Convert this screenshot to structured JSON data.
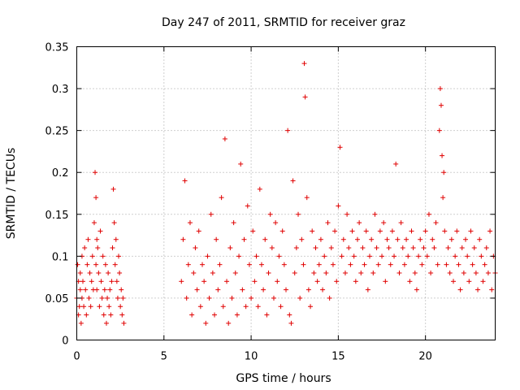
{
  "chart_data": {
    "type": "scatter",
    "title": "Day 247 of 2011, SRMTID for receiver graz",
    "xlabel": "GPS time / hours",
    "ylabel": "SRMTID / TECUs",
    "xlim": [
      0,
      24
    ],
    "ylim": [
      0,
      0.35
    ],
    "x_ticks": [
      0,
      5,
      10,
      15,
      20
    ],
    "x_tick_labels": [
      "0",
      "5",
      "10",
      "15",
      "20"
    ],
    "y_ticks": [
      0,
      0.05,
      0.1,
      0.15,
      0.2,
      0.25,
      0.3,
      0.35
    ],
    "y_tick_labels": [
      "0",
      "0.05",
      "0.1",
      "0.15",
      "0.2",
      "0.25",
      "0.3",
      "0.35"
    ],
    "grid": true,
    "marker": "+",
    "marker_color": "#e00000",
    "series": [
      {
        "name": "SRMTID",
        "x": [
          0.0,
          0.05,
          0.1,
          0.1,
          0.15,
          0.2,
          0.2,
          0.25,
          0.3,
          0.3,
          0.35,
          0.4,
          0.45,
          0.5,
          0.55,
          0.6,
          0.65,
          0.7,
          0.75,
          0.8,
          0.85,
          0.9,
          0.95,
          1.0,
          1.05,
          1.1,
          1.1,
          1.15,
          1.15,
          1.2,
          1.25,
          1.3,
          1.35,
          1.4,
          1.45,
          1.5,
          1.55,
          1.6,
          1.65,
          1.7,
          1.75,
          1.8,
          1.85,
          1.9,
          1.95,
          2.0,
          2.05,
          2.1,
          2.15,
          2.2,
          2.25,
          2.3,
          2.35,
          2.4,
          2.45,
          2.5,
          2.55,
          2.6,
          2.65,
          2.7,
          6.0,
          6.1,
          6.2,
          6.3,
          6.4,
          6.5,
          6.6,
          6.7,
          6.8,
          6.9,
          7.0,
          7.1,
          7.2,
          7.3,
          7.4,
          7.5,
          7.6,
          7.7,
          7.8,
          7.9,
          8.0,
          8.1,
          8.2,
          8.3,
          8.4,
          8.5,
          8.6,
          8.7,
          8.8,
          8.9,
          9.0,
          9.1,
          9.2,
          9.3,
          9.4,
          9.5,
          9.6,
          9.7,
          9.8,
          9.9,
          10.0,
          10.1,
          10.2,
          10.3,
          10.4,
          10.5,
          10.6,
          10.7,
          10.8,
          10.9,
          11.0,
          11.1,
          11.2,
          11.3,
          11.4,
          11.5,
          11.6,
          11.7,
          11.8,
          11.9,
          12.0,
          12.1,
          12.2,
          12.3,
          12.4,
          12.5,
          12.6,
          12.7,
          12.8,
          12.9,
          13.0,
          13.05,
          13.1,
          13.2,
          13.3,
          13.4,
          13.5,
          13.6,
          13.7,
          13.8,
          13.9,
          14.0,
          14.1,
          14.2,
          14.3,
          14.4,
          14.5,
          14.6,
          14.7,
          14.8,
          14.9,
          15.0,
          15.1,
          15.2,
          15.3,
          15.4,
          15.5,
          15.6,
          15.7,
          15.8,
          15.9,
          16.0,
          16.1,
          16.2,
          16.3,
          16.4,
          16.5,
          16.6,
          16.7,
          16.8,
          16.9,
          17.0,
          17.1,
          17.2,
          17.3,
          17.4,
          17.5,
          17.6,
          17.7,
          17.8,
          17.9,
          18.0,
          18.1,
          18.2,
          18.3,
          18.4,
          18.5,
          18.6,
          18.7,
          18.8,
          18.9,
          19.0,
          19.1,
          19.2,
          19.3,
          19.4,
          19.5,
          19.6,
          19.7,
          19.8,
          19.9,
          20.0,
          20.1,
          20.2,
          20.3,
          20.4,
          20.5,
          20.6,
          20.7,
          20.8,
          20.85,
          20.9,
          20.95,
          21.0,
          21.05,
          21.1,
          21.2,
          21.3,
          21.4,
          21.5,
          21.6,
          21.7,
          21.8,
          21.9,
          22.0,
          22.1,
          22.2,
          22.3,
          22.4,
          22.5,
          22.6,
          22.7,
          22.8,
          22.9,
          23.0,
          23.1,
          23.2,
          23.3,
          23.4,
          23.5,
          23.6,
          23.7,
          23.8,
          23.9,
          24.0
        ],
        "y": [
          0.05,
          0.09,
          0.03,
          0.07,
          0.04,
          0.08,
          0.06,
          0.02,
          0.1,
          0.05,
          0.07,
          0.04,
          0.11,
          0.06,
          0.03,
          0.09,
          0.12,
          0.05,
          0.08,
          0.04,
          0.07,
          0.1,
          0.06,
          0.14,
          0.2,
          0.17,
          0.09,
          0.12,
          0.06,
          0.11,
          0.08,
          0.04,
          0.13,
          0.07,
          0.05,
          0.1,
          0.03,
          0.06,
          0.09,
          0.02,
          0.05,
          0.08,
          0.04,
          0.06,
          0.03,
          0.07,
          0.11,
          0.18,
          0.14,
          0.09,
          0.12,
          0.07,
          0.05,
          0.1,
          0.08,
          0.04,
          0.06,
          0.03,
          0.05,
          0.02,
          0.07,
          0.12,
          0.19,
          0.05,
          0.09,
          0.14,
          0.03,
          0.08,
          0.11,
          0.06,
          0.13,
          0.04,
          0.09,
          0.07,
          0.02,
          0.1,
          0.05,
          0.15,
          0.08,
          0.03,
          0.12,
          0.06,
          0.09,
          0.17,
          0.04,
          0.24,
          0.07,
          0.02,
          0.11,
          0.05,
          0.14,
          0.08,
          0.03,
          0.1,
          0.21,
          0.06,
          0.12,
          0.04,
          0.16,
          0.09,
          0.05,
          0.13,
          0.07,
          0.1,
          0.04,
          0.18,
          0.09,
          0.06,
          0.12,
          0.03,
          0.08,
          0.15,
          0.11,
          0.05,
          0.14,
          0.07,
          0.1,
          0.04,
          0.13,
          0.09,
          0.06,
          0.25,
          0.03,
          0.02,
          0.19,
          0.08,
          0.11,
          0.15,
          0.05,
          0.12,
          0.09,
          0.33,
          0.29,
          0.17,
          0.06,
          0.04,
          0.13,
          0.08,
          0.11,
          0.07,
          0.09,
          0.12,
          0.06,
          0.1,
          0.08,
          0.14,
          0.05,
          0.11,
          0.09,
          0.13,
          0.07,
          0.16,
          0.23,
          0.1,
          0.12,
          0.08,
          0.15,
          0.11,
          0.09,
          0.13,
          0.1,
          0.07,
          0.12,
          0.14,
          0.08,
          0.11,
          0.09,
          0.13,
          0.06,
          0.1,
          0.12,
          0.08,
          0.15,
          0.11,
          0.09,
          0.13,
          0.1,
          0.14,
          0.07,
          0.12,
          0.11,
          0.09,
          0.13,
          0.1,
          0.21,
          0.12,
          0.08,
          0.14,
          0.11,
          0.09,
          0.12,
          0.1,
          0.07,
          0.13,
          0.11,
          0.08,
          0.06,
          0.1,
          0.12,
          0.09,
          0.11,
          0.13,
          0.1,
          0.15,
          0.08,
          0.12,
          0.11,
          0.14,
          0.09,
          0.25,
          0.3,
          0.28,
          0.22,
          0.17,
          0.2,
          0.13,
          0.09,
          0.11,
          0.08,
          0.12,
          0.07,
          0.1,
          0.13,
          0.09,
          0.06,
          0.11,
          0.08,
          0.12,
          0.1,
          0.07,
          0.13,
          0.09,
          0.11,
          0.08,
          0.06,
          0.12,
          0.1,
          0.07,
          0.09,
          0.11,
          0.08,
          0.13,
          0.06,
          0.1,
          0.08
        ]
      }
    ]
  }
}
